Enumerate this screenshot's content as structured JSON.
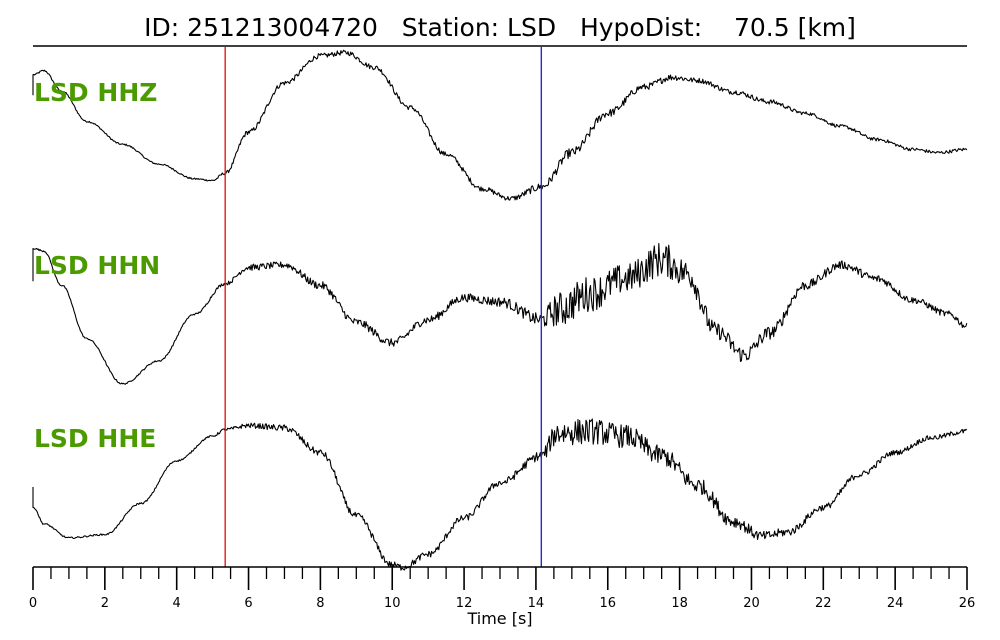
{
  "header": {
    "id_label": "ID: 251213004720",
    "station_label": "Station: LSD",
    "hypodist_label": "HypoDist:",
    "hypodist_value": "70.5 [km]"
  },
  "colors": {
    "label": "#4a9a00",
    "p_pick": "#e41a1c",
    "s_pick": "#1f2ad8",
    "trace": "#000000"
  },
  "chart_data": {
    "type": "line",
    "title": "ID: 251213004720   Station: LSD   HypoDist:    70.5 [km]",
    "xlabel": "Time [s]",
    "xlim": [
      0,
      26
    ],
    "x_ticks": [
      "0",
      "2",
      "4",
      "6",
      "8",
      "10",
      "12",
      "14",
      "16",
      "18",
      "20",
      "22",
      "24",
      "26"
    ],
    "minor_tick_step": 0.5,
    "picks": [
      {
        "time": 5.35,
        "color": "#e41a1c"
      },
      {
        "time": 14.15,
        "color": "#1f2ad8"
      }
    ],
    "series": [
      {
        "name": "LSD HHZ",
        "ylim": [
          -1,
          1
        ],
        "x": [
          0,
          0.02,
          0.3,
          0.8,
          1.5,
          2.5,
          3.5,
          4.5,
          5,
          5.35,
          6,
          7,
          8,
          8.7,
          9.5,
          10.5,
          11.5,
          12.5,
          13.3,
          14.15,
          15,
          16,
          17,
          17.8,
          18.5,
          19.5,
          20.5,
          21.5,
          22.5,
          23.5,
          24.5,
          25.2,
          26
        ],
        "values": [
          0.4,
          0.65,
          0.7,
          0.45,
          0.08,
          -0.2,
          -0.44,
          -0.62,
          -0.64,
          -0.55,
          -0.05,
          0.55,
          0.88,
          0.92,
          0.74,
          0.25,
          -0.32,
          -0.74,
          -0.86,
          -0.72,
          -0.3,
          0.18,
          0.5,
          0.62,
          0.58,
          0.44,
          0.32,
          0.18,
          0.02,
          -0.14,
          -0.26,
          -0.3,
          -0.26
        ],
        "noise": [
          0.01,
          0.01,
          0.01,
          0.01,
          0.01,
          0.01,
          0.01,
          0.01,
          0.01,
          0.02,
          0.03,
          0.03,
          0.03,
          0.03,
          0.03,
          0.03,
          0.03,
          0.03,
          0.03,
          0.05,
          0.06,
          0.05,
          0.04,
          0.04,
          0.03,
          0.03,
          0.03,
          0.02,
          0.02,
          0.02,
          0.02,
          0.02,
          0.02
        ]
      },
      {
        "name": "LSD HHN",
        "ylim": [
          -1,
          1
        ],
        "x": [
          0,
          0.02,
          0.3,
          0.8,
          1.5,
          2.5,
          3.5,
          4.5,
          5.35,
          6,
          7,
          8,
          9,
          10,
          11,
          12,
          13,
          14.15,
          14.6,
          15.5,
          16.5,
          17.5,
          18.2,
          19,
          19.8,
          20.5,
          21.5,
          22.5,
          23.5,
          24.5,
          25.5,
          26
        ],
        "values": [
          0.35,
          0.75,
          0.72,
          0.3,
          -0.35,
          -0.9,
          -0.62,
          -0.05,
          0.32,
          0.52,
          0.55,
          0.3,
          -0.15,
          -0.4,
          -0.12,
          0.15,
          0.1,
          -0.12,
          0.0,
          0.2,
          0.38,
          0.62,
          0.45,
          -0.25,
          -0.55,
          -0.28,
          0.3,
          0.55,
          0.38,
          0.12,
          -0.05,
          -0.2
        ],
        "noise": [
          0.01,
          0.01,
          0.01,
          0.01,
          0.01,
          0.01,
          0.01,
          0.01,
          0.02,
          0.04,
          0.04,
          0.05,
          0.05,
          0.05,
          0.05,
          0.05,
          0.06,
          0.08,
          0.22,
          0.22,
          0.18,
          0.22,
          0.17,
          0.1,
          0.1,
          0.08,
          0.06,
          0.05,
          0.05,
          0.04,
          0.04,
          0.04
        ]
      },
      {
        "name": "LSD HHE",
        "ylim": [
          -1,
          1
        ],
        "x": [
          0,
          0.02,
          0.3,
          1,
          2,
          3,
          4,
          5,
          5.35,
          6,
          7,
          8,
          9,
          10,
          10.3,
          11,
          12,
          13,
          14.15,
          14.6,
          15.5,
          16.5,
          17.5,
          18.5,
          19.5,
          20.3,
          21,
          22,
          23,
          24,
          25,
          26
        ],
        "values": [
          0.0,
          -0.25,
          -0.45,
          -0.62,
          -0.58,
          -0.2,
          0.32,
          0.62,
          0.7,
          0.75,
          0.72,
          0.42,
          -0.35,
          -0.95,
          -0.98,
          -0.82,
          -0.38,
          0.05,
          0.38,
          0.66,
          0.68,
          0.62,
          0.38,
          0.02,
          -0.42,
          -0.6,
          -0.55,
          -0.25,
          0.15,
          0.42,
          0.6,
          0.68
        ],
        "noise": [
          0.01,
          0.01,
          0.01,
          0.01,
          0.01,
          0.01,
          0.01,
          0.01,
          0.02,
          0.03,
          0.04,
          0.04,
          0.04,
          0.04,
          0.04,
          0.04,
          0.04,
          0.04,
          0.06,
          0.16,
          0.16,
          0.14,
          0.12,
          0.1,
          0.08,
          0.06,
          0.05,
          0.04,
          0.04,
          0.03,
          0.03,
          0.03
        ]
      }
    ]
  }
}
